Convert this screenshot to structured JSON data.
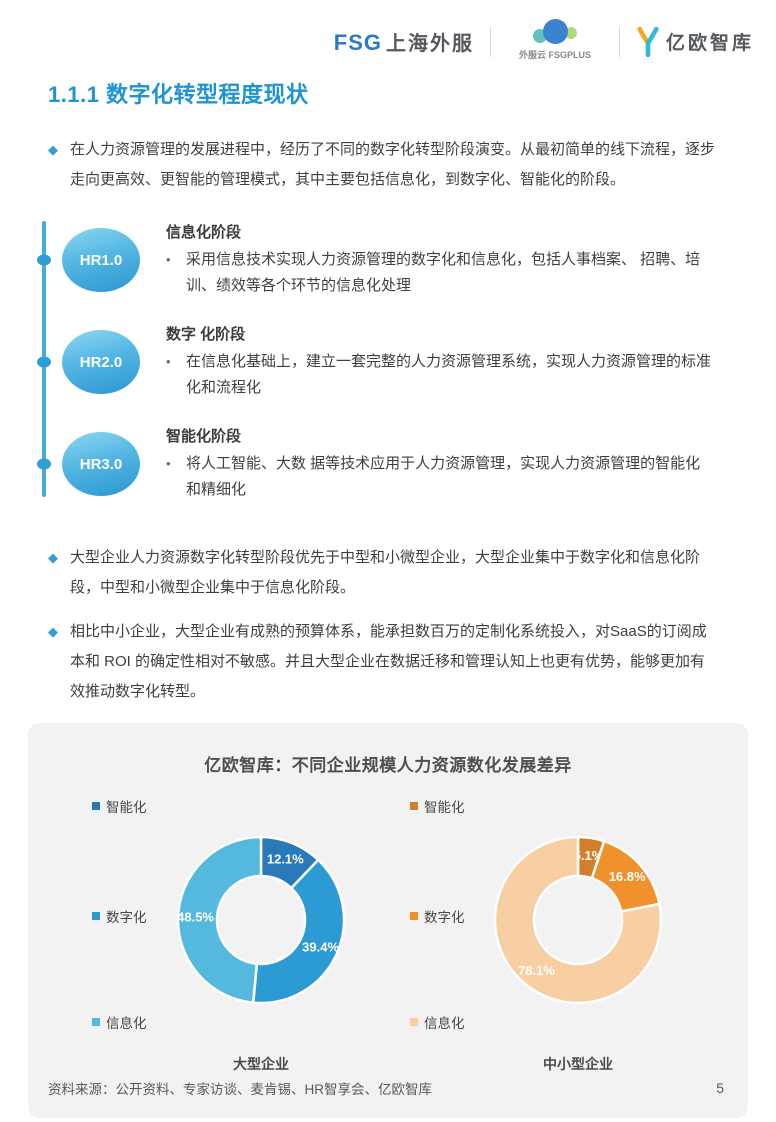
{
  "header": {
    "fsg_logo": {
      "abbr": "FSG",
      "name": "上海外服"
    },
    "fsgplus_logo": {
      "caption": "外服云 FSGPLUS"
    },
    "yiou_logo": {
      "name": "亿欧智库"
    }
  },
  "page": {
    "section_title": "1.1.1 数字化转型程度现状",
    "bullets": {
      "intro": "在人力资源管理的发展进程中，经历了不同的数字化转型阶段演变。从最初简单的线下流程，逐步走向更高效、更智能的管理模式，其中主要包括信息化，到数字化、智能化的阶段。",
      "compare": "大型企业人力资源数字化转型阶段优先于中型和小微型企业，大型企业集中于数字化和信息化阶段，中型和小微型企业集中于信息化阶段。",
      "budget": "相比中小企业，大型企业有成熟的预算体系，能承担数百万的定制化系统投入，对SaaS的订阅成本和 ROI 的确定性相对不敏感。并且大型企业在数据迁移和管理认知上也更有优势，能够更加有效推动数字化转型。"
    },
    "timeline": {
      "stages": [
        {
          "badge": "HR1.0",
          "heading": "信息化阶段",
          "desc": "采用信息技术实现人力资源管理的数字化和信息化，包括人事档案、 招聘、培训、绩效等各个环节的信息化处理"
        },
        {
          "badge": "HR2.0",
          "heading": "数字 化阶段",
          "desc": "在信息化基础上，建立一套完整的人力资源管理系统，实现人力资源管理的标准化和流程化"
        },
        {
          "badge": "HR3.0",
          "heading": "智能化阶段",
          "desc": "将人工智能、大数 据等技术应用于人力资源管理，实现人力资源管理的智能化和精细化"
        }
      ]
    },
    "chart_section_title": "亿欧智库：不同企业规模人力资源数化发展差异"
  },
  "chart_data": [
    {
      "type": "pie",
      "subtype": "donut",
      "title": "大型企业",
      "unit": "%",
      "legend_position": "left",
      "series": [
        {
          "label": "智能化",
          "value": 12.1,
          "color": "#2979b9"
        },
        {
          "label": "数字化",
          "value": 39.4,
          "color": "#2d9bd3"
        },
        {
          "label": "信息化",
          "value": 48.5,
          "color": "#55b9de"
        }
      ]
    },
    {
      "type": "pie",
      "subtype": "donut",
      "title": "中小型企业",
      "unit": "%",
      "legend_position": "left",
      "series": [
        {
          "label": "智能化",
          "value": 5.1,
          "color": "#d27f2c"
        },
        {
          "label": "数字化",
          "value": 16.8,
          "color": "#f0912d"
        },
        {
          "label": "信息化",
          "value": 78.1,
          "color": "#f8cfa3"
        }
      ]
    }
  ],
  "footer": {
    "source": "资料来源：公开资料、专家访谈、麦肯锡、HR智享会、亿欧智库",
    "page_number": "5"
  },
  "colors": {
    "accent_blue": "#1e94d2",
    "timeline_blue": "#45acdc",
    "card_bg": "#f2f2f2"
  }
}
